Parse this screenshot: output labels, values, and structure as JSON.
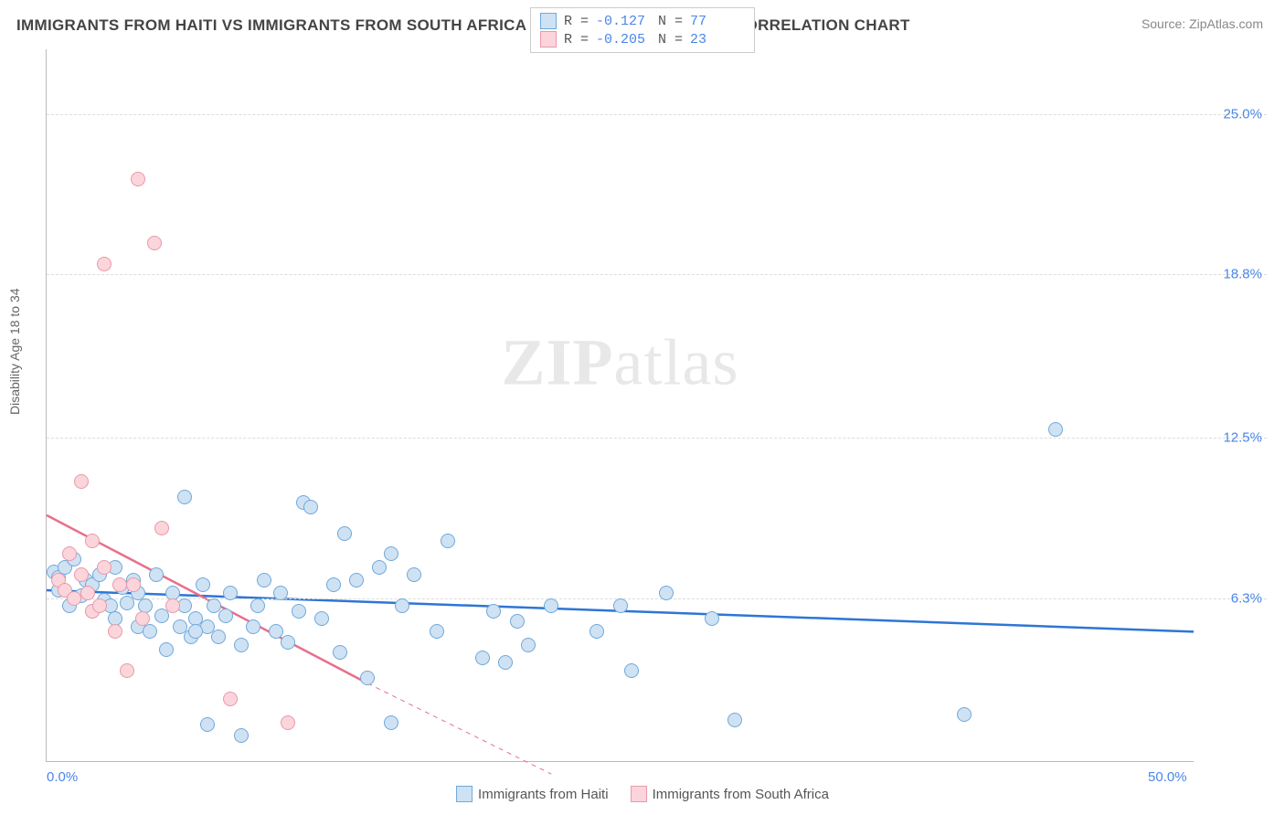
{
  "title": "IMMIGRANTS FROM HAITI VS IMMIGRANTS FROM SOUTH AFRICA DISABILITY AGE 18 TO 34 CORRELATION CHART",
  "source": "Source: ZipAtlas.com",
  "watermark_a": "ZIP",
  "watermark_b": "atlas",
  "chart": {
    "type": "scatter",
    "ylabel": "Disability Age 18 to 34",
    "xlim": [
      0,
      50
    ],
    "ylim": [
      0,
      27.5
    ],
    "xticks": [
      {
        "v": 0,
        "label": "0.0%"
      },
      {
        "v": 50,
        "label": "50.0%"
      }
    ],
    "yticks": [
      {
        "v": 6.3,
        "label": "6.3%"
      },
      {
        "v": 12.5,
        "label": "12.5%"
      },
      {
        "v": 18.8,
        "label": "18.8%"
      },
      {
        "v": 25.0,
        "label": "25.0%"
      }
    ],
    "grid_color": "#dddddd",
    "axis_color": "#bbbbbb",
    "background_color": "#ffffff",
    "marker_radius": 8,
    "marker_border_width": 1.2,
    "series": [
      {
        "name": "Immigrants from Haiti",
        "fill": "#cfe2f3",
        "stroke": "#6fa8dc",
        "line_color": "#2e75d6",
        "line_width": 2.5,
        "R": "-0.127",
        "N": "77",
        "trend": {
          "x1": 0,
          "y1": 6.6,
          "x2": 50,
          "y2": 5.0
        },
        "points": [
          [
            0.3,
            7.3
          ],
          [
            0.5,
            7.1
          ],
          [
            0.5,
            6.6
          ],
          [
            0.8,
            7.5
          ],
          [
            1.0,
            6.0
          ],
          [
            1.2,
            7.8
          ],
          [
            1.5,
            6.4
          ],
          [
            1.7,
            7.0
          ],
          [
            2.0,
            6.8
          ],
          [
            2.0,
            5.8
          ],
          [
            2.3,
            7.2
          ],
          [
            2.5,
            6.2
          ],
          [
            2.8,
            6.0
          ],
          [
            3.0,
            7.5
          ],
          [
            3.0,
            5.5
          ],
          [
            3.3,
            6.7
          ],
          [
            3.5,
            6.1
          ],
          [
            3.8,
            7.0
          ],
          [
            4.0,
            5.2
          ],
          [
            4.0,
            6.5
          ],
          [
            4.3,
            6.0
          ],
          [
            4.5,
            5.0
          ],
          [
            4.8,
            7.2
          ],
          [
            5.0,
            5.6
          ],
          [
            5.2,
            4.3
          ],
          [
            5.5,
            6.5
          ],
          [
            5.8,
            5.2
          ],
          [
            6.0,
            6.0
          ],
          [
            6.0,
            10.2
          ],
          [
            6.3,
            4.8
          ],
          [
            6.5,
            5.5
          ],
          [
            6.8,
            6.8
          ],
          [
            7.0,
            1.4
          ],
          [
            7.0,
            5.2
          ],
          [
            7.3,
            6.0
          ],
          [
            7.5,
            4.8
          ],
          [
            7.8,
            5.6
          ],
          [
            8.0,
            6.5
          ],
          [
            8.5,
            4.5
          ],
          [
            8.5,
            1.0
          ],
          [
            9.0,
            5.2
          ],
          [
            9.2,
            6.0
          ],
          [
            9.5,
            7.0
          ],
          [
            10.0,
            5.0
          ],
          [
            10.2,
            6.5
          ],
          [
            10.5,
            4.6
          ],
          [
            11.0,
            5.8
          ],
          [
            11.2,
            10.0
          ],
          [
            11.5,
            9.8
          ],
          [
            12.0,
            5.5
          ],
          [
            12.5,
            6.8
          ],
          [
            13.0,
            8.8
          ],
          [
            13.5,
            7.0
          ],
          [
            14.0,
            3.2
          ],
          [
            14.5,
            7.5
          ],
          [
            15.0,
            8.0
          ],
          [
            15.0,
            1.5
          ],
          [
            15.5,
            6.0
          ],
          [
            16.0,
            7.2
          ],
          [
            17.0,
            5.0
          ],
          [
            17.5,
            8.5
          ],
          [
            19.0,
            4.0
          ],
          [
            19.5,
            5.8
          ],
          [
            20.0,
            3.8
          ],
          [
            20.5,
            5.4
          ],
          [
            21.0,
            4.5
          ],
          [
            22.0,
            6.0
          ],
          [
            24.0,
            5.0
          ],
          [
            25.0,
            6.0
          ],
          [
            25.5,
            3.5
          ],
          [
            27.0,
            6.5
          ],
          [
            29.0,
            5.5
          ],
          [
            30.0,
            1.6
          ],
          [
            40.0,
            1.8
          ],
          [
            44.0,
            12.8
          ],
          [
            12.8,
            4.2
          ],
          [
            6.5,
            5.0
          ]
        ]
      },
      {
        "name": "Immigrants from South Africa",
        "fill": "#fbd5db",
        "stroke": "#e899a8",
        "line_color": "#e86f8a",
        "line_width": 2.5,
        "R": "-0.205",
        "N": "23",
        "trend": {
          "x1": 0,
          "y1": 9.5,
          "x2": 14,
          "y2": 3.0
        },
        "trend_dash": {
          "x1": 14,
          "y1": 3.0,
          "x2": 22,
          "y2": -0.5
        },
        "points": [
          [
            0.5,
            7.0
          ],
          [
            0.8,
            6.6
          ],
          [
            1.0,
            8.0
          ],
          [
            1.2,
            6.3
          ],
          [
            1.5,
            7.2
          ],
          [
            1.5,
            10.8
          ],
          [
            1.8,
            6.5
          ],
          [
            2.0,
            8.5
          ],
          [
            2.0,
            5.8
          ],
          [
            2.3,
            6.0
          ],
          [
            2.5,
            7.5
          ],
          [
            2.5,
            19.2
          ],
          [
            3.0,
            5.0
          ],
          [
            3.2,
            6.8
          ],
          [
            3.5,
            3.5
          ],
          [
            3.8,
            6.8
          ],
          [
            4.0,
            22.5
          ],
          [
            4.2,
            5.5
          ],
          [
            4.7,
            20.0
          ],
          [
            5.0,
            9.0
          ],
          [
            5.5,
            6.0
          ],
          [
            8.0,
            2.4
          ],
          [
            10.5,
            1.5
          ]
        ]
      }
    ]
  },
  "legend_bottom": [
    {
      "swatch_fill": "#cfe2f3",
      "swatch_stroke": "#6fa8dc",
      "label": "Immigrants from Haiti"
    },
    {
      "swatch_fill": "#fbd5db",
      "swatch_stroke": "#e899a8",
      "label": "Immigrants from South Africa"
    }
  ]
}
